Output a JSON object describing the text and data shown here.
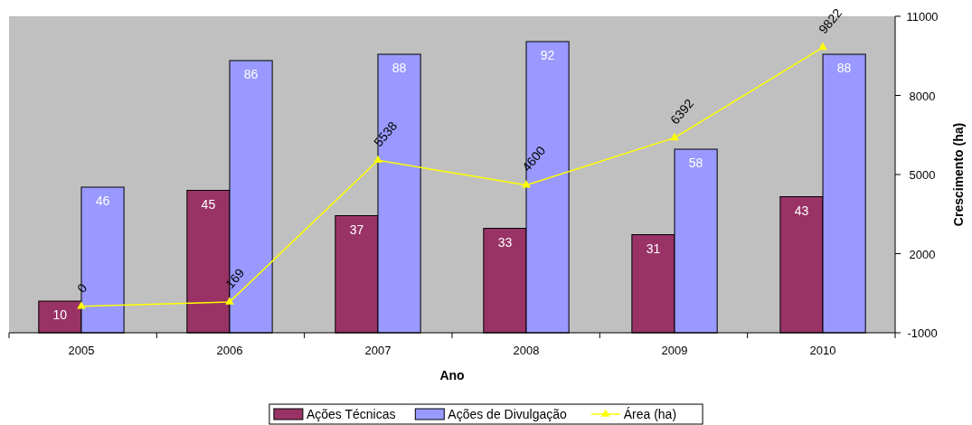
{
  "chart_data": {
    "type": "bar",
    "xlabel": "Ano",
    "y2label": "Crescimento (ha)",
    "categories": [
      "2005",
      "2006",
      "2007",
      "2008",
      "2009",
      "2010"
    ],
    "ylim": [
      0,
      100
    ],
    "y2lim": [
      -1000,
      11000
    ],
    "y2ticks": [
      -1000,
      2000,
      5000,
      8000,
      11000
    ],
    "series": [
      {
        "name": "Ações Técnicas",
        "color": "#993366",
        "values": [
          10,
          45,
          37,
          33,
          31,
          43
        ]
      },
      {
        "name": "Ações de Divulgação",
        "color": "#9999ff",
        "values": [
          46,
          86,
          88,
          92,
          58,
          88
        ]
      },
      {
        "name": "Área (ha)",
        "type": "line",
        "axis": "y2",
        "color": "#ffff00",
        "marker": "triangle",
        "values": [
          0,
          169,
          5538,
          4600,
          6392,
          9822
        ]
      }
    ],
    "data_labels": true,
    "legend": "bottom",
    "grid": false
  }
}
